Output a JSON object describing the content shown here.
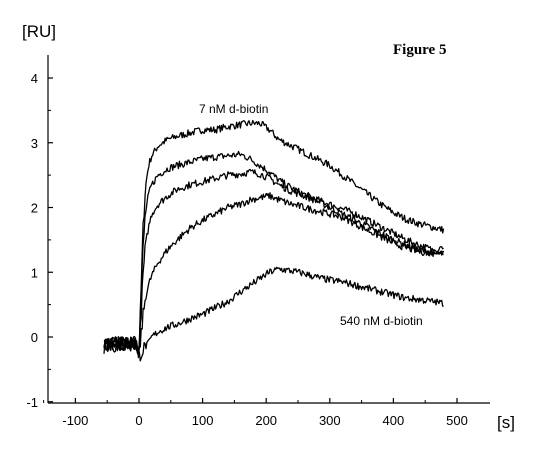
{
  "chart_data": {
    "type": "line",
    "title": "Figure 5",
    "xlabel": "[s]",
    "ylabel": "[RU]",
    "xlim": [
      -160,
      510
    ],
    "ylim": [
      -1,
      4.4
    ],
    "xticks": [
      -100,
      0,
      100,
      200,
      300,
      400,
      500
    ],
    "yticks": [
      -1,
      0,
      1,
      2,
      3,
      4
    ],
    "grid": false,
    "annotations": [
      {
        "text": "7 nM d-biotin",
        "target_series": 0
      },
      {
        "text": "540 nM d-biotin",
        "target_series": 4
      }
    ],
    "series": [
      {
        "points": [
          [
            -55,
            -0.15
          ],
          [
            -40,
            -0.1
          ],
          [
            -20,
            -0.12
          ],
          [
            -5,
            -0.1
          ],
          [
            0,
            -0.2
          ],
          [
            3,
            0.6
          ],
          [
            6,
            1.6
          ],
          [
            10,
            2.3
          ],
          [
            15,
            2.65
          ],
          [
            20,
            2.8
          ],
          [
            30,
            2.95
          ],
          [
            45,
            3.05
          ],
          [
            60,
            3.1
          ],
          [
            80,
            3.15
          ],
          [
            100,
            3.2
          ],
          [
            120,
            3.2
          ],
          [
            140,
            3.25
          ],
          [
            160,
            3.28
          ],
          [
            175,
            3.3
          ],
          [
            190,
            3.3
          ],
          [
            205,
            3.2
          ],
          [
            220,
            3.05
          ],
          [
            240,
            2.95
          ],
          [
            260,
            2.85
          ],
          [
            280,
            2.75
          ],
          [
            300,
            2.65
          ],
          [
            320,
            2.5
          ],
          [
            340,
            2.35
          ],
          [
            360,
            2.2
          ],
          [
            380,
            2.05
          ],
          [
            400,
            1.92
          ],
          [
            420,
            1.82
          ],
          [
            440,
            1.75
          ],
          [
            460,
            1.7
          ],
          [
            480,
            1.65
          ]
        ]
      },
      {
        "points": [
          [
            -55,
            -0.15
          ],
          [
            -40,
            -0.08
          ],
          [
            -20,
            -0.12
          ],
          [
            -5,
            -0.1
          ],
          [
            0,
            -0.2
          ],
          [
            3,
            0.5
          ],
          [
            6,
            1.3
          ],
          [
            10,
            1.9
          ],
          [
            15,
            2.2
          ],
          [
            20,
            2.35
          ],
          [
            30,
            2.5
          ],
          [
            45,
            2.6
          ],
          [
            60,
            2.65
          ],
          [
            80,
            2.7
          ],
          [
            100,
            2.75
          ],
          [
            120,
            2.78
          ],
          [
            140,
            2.8
          ],
          [
            160,
            2.82
          ],
          [
            175,
            2.75
          ],
          [
            190,
            2.65
          ],
          [
            205,
            2.55
          ],
          [
            220,
            2.42
          ],
          [
            240,
            2.3
          ],
          [
            260,
            2.2
          ],
          [
            280,
            2.12
          ],
          [
            300,
            2.05
          ],
          [
            320,
            1.98
          ],
          [
            340,
            1.9
          ],
          [
            360,
            1.8
          ],
          [
            380,
            1.7
          ],
          [
            400,
            1.6
          ],
          [
            420,
            1.5
          ],
          [
            440,
            1.42
          ],
          [
            460,
            1.35
          ],
          [
            480,
            1.3
          ]
        ]
      },
      {
        "points": [
          [
            -55,
            -0.12
          ],
          [
            -40,
            -0.1
          ],
          [
            -20,
            -0.1
          ],
          [
            -5,
            -0.08
          ],
          [
            0,
            -0.25
          ],
          [
            3,
            0.3
          ],
          [
            6,
            0.9
          ],
          [
            10,
            1.4
          ],
          [
            15,
            1.7
          ],
          [
            20,
            1.9
          ],
          [
            30,
            2.05
          ],
          [
            45,
            2.18
          ],
          [
            60,
            2.28
          ],
          [
            80,
            2.35
          ],
          [
            100,
            2.4
          ],
          [
            120,
            2.45
          ],
          [
            140,
            2.5
          ],
          [
            160,
            2.52
          ],
          [
            175,
            2.55
          ],
          [
            190,
            2.52
          ],
          [
            205,
            2.45
          ],
          [
            220,
            2.35
          ],
          [
            240,
            2.25
          ],
          [
            260,
            2.18
          ],
          [
            280,
            2.1
          ],
          [
            300,
            2.0
          ],
          [
            320,
            1.9
          ],
          [
            340,
            1.8
          ],
          [
            360,
            1.7
          ],
          [
            380,
            1.6
          ],
          [
            400,
            1.5
          ],
          [
            420,
            1.42
          ],
          [
            440,
            1.35
          ],
          [
            460,
            1.3
          ],
          [
            480,
            1.28
          ]
        ]
      },
      {
        "points": [
          [
            -55,
            -0.1
          ],
          [
            -40,
            -0.12
          ],
          [
            -20,
            -0.08
          ],
          [
            -5,
            -0.1
          ],
          [
            0,
            -0.3
          ],
          [
            3,
            0.0
          ],
          [
            6,
            0.3
          ],
          [
            10,
            0.6
          ],
          [
            15,
            0.8
          ],
          [
            20,
            0.95
          ],
          [
            30,
            1.15
          ],
          [
            45,
            1.35
          ],
          [
            60,
            1.5
          ],
          [
            80,
            1.68
          ],
          [
            100,
            1.8
          ],
          [
            120,
            1.9
          ],
          [
            140,
            2.0
          ],
          [
            160,
            2.05
          ],
          [
            175,
            2.12
          ],
          [
            190,
            2.15
          ],
          [
            205,
            2.18
          ],
          [
            220,
            2.12
          ],
          [
            240,
            2.05
          ],
          [
            260,
            2.0
          ],
          [
            280,
            1.95
          ],
          [
            300,
            1.9
          ],
          [
            320,
            1.85
          ],
          [
            340,
            1.75
          ],
          [
            360,
            1.65
          ],
          [
            380,
            1.55
          ],
          [
            400,
            1.45
          ],
          [
            420,
            1.38
          ],
          [
            440,
            1.32
          ],
          [
            460,
            1.3
          ],
          [
            480,
            1.4
          ]
        ]
      },
      {
        "points": [
          [
            -55,
            -0.1
          ],
          [
            -40,
            -0.15
          ],
          [
            -20,
            -0.1
          ],
          [
            -5,
            -0.12
          ],
          [
            0,
            -0.3
          ],
          [
            3,
            -0.25
          ],
          [
            6,
            -0.2
          ],
          [
            10,
            -0.15
          ],
          [
            15,
            -0.1
          ],
          [
            20,
            0.0
          ],
          [
            30,
            0.08
          ],
          [
            45,
            0.15
          ],
          [
            60,
            0.2
          ],
          [
            80,
            0.28
          ],
          [
            100,
            0.35
          ],
          [
            120,
            0.45
          ],
          [
            140,
            0.55
          ],
          [
            160,
            0.7
          ],
          [
            175,
            0.8
          ],
          [
            190,
            0.9
          ],
          [
            205,
            1.0
          ],
          [
            220,
            1.05
          ],
          [
            240,
            1.02
          ],
          [
            260,
            0.98
          ],
          [
            280,
            0.92
          ],
          [
            300,
            0.88
          ],
          [
            320,
            0.85
          ],
          [
            340,
            0.8
          ],
          [
            360,
            0.75
          ],
          [
            380,
            0.7
          ],
          [
            400,
            0.65
          ],
          [
            420,
            0.6
          ],
          [
            440,
            0.58
          ],
          [
            460,
            0.55
          ],
          [
            480,
            0.52
          ]
        ]
      }
    ]
  }
}
